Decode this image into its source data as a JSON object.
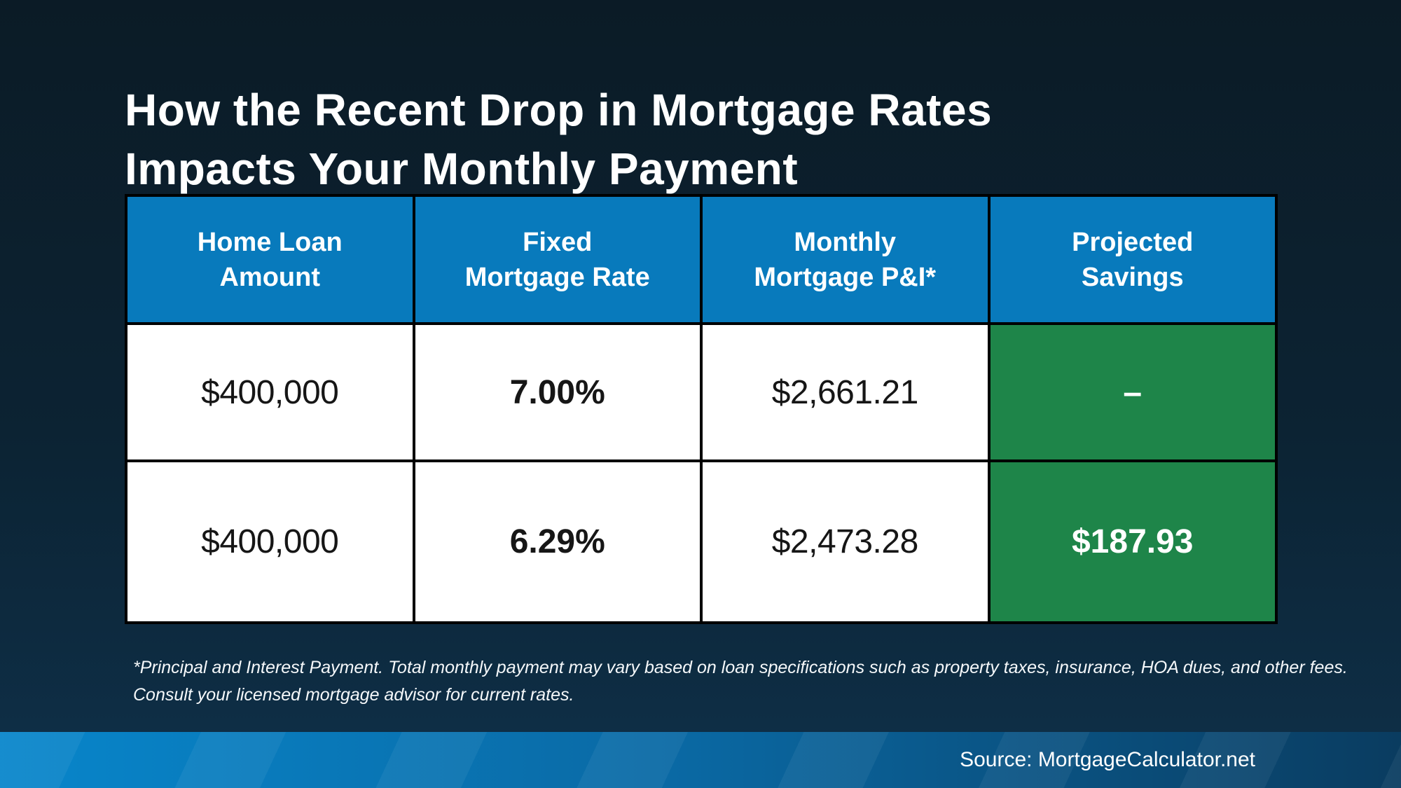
{
  "title": "How the Recent Drop in Mortgage Rates\nImpacts Your Monthly Payment",
  "table": {
    "headers": [
      "Home Loan\nAmount",
      "Fixed\nMortgage Rate",
      "Monthly\nMortgage P&I*",
      "Projected\nSavings"
    ],
    "rows": [
      {
        "loan_amount": "$400,000",
        "rate": "7.00%",
        "payment": "$2,661.21",
        "savings": "–"
      },
      {
        "loan_amount": "$400,000",
        "rate": "6.29%",
        "payment": "$2,473.28",
        "savings": "$187.93"
      }
    ]
  },
  "footnote": {
    "line1": "*Principal and Interest Payment. Total monthly payment may vary based on loan specifications such as property taxes, insurance, HOA dues, and other fees.",
    "line2": "Consult your licensed mortgage advisor for current rates."
  },
  "footer": {
    "source_label": "Source: MortgageCalculator.net"
  },
  "colors": {
    "background_top": "#0b1b26",
    "background_bottom": "#0e3049",
    "header_blue": "#087abc",
    "savings_green": "#1e8549",
    "footer_bar_left": "#0886cb",
    "footer_bar_right": "#0a3c60",
    "grid_border": "#000000",
    "cell_white": "#ffffff",
    "text_dark": "#161616",
    "text_white": "#ffffff"
  },
  "chart_data": {
    "type": "table",
    "title": "How the Recent Drop in Mortgage Rates Impacts Your Monthly Payment",
    "columns": [
      "Home Loan Amount",
      "Fixed Mortgage Rate",
      "Monthly Mortgage P&I*",
      "Projected Savings"
    ],
    "rows": [
      [
        "$400,000",
        "7.00%",
        "$2,661.21",
        "–"
      ],
      [
        "$400,000",
        "6.29%",
        "$2,473.28",
        "$187.93"
      ]
    ],
    "notes": "*Principal and Interest Payment. Total monthly payment may vary based on loan specifications such as property taxes, insurance, HOA dues, and other fees. Consult your licensed mortgage advisor for current rates.",
    "source": "Source: MortgageCalculator.net",
    "legend_position": "none",
    "grid": true
  }
}
